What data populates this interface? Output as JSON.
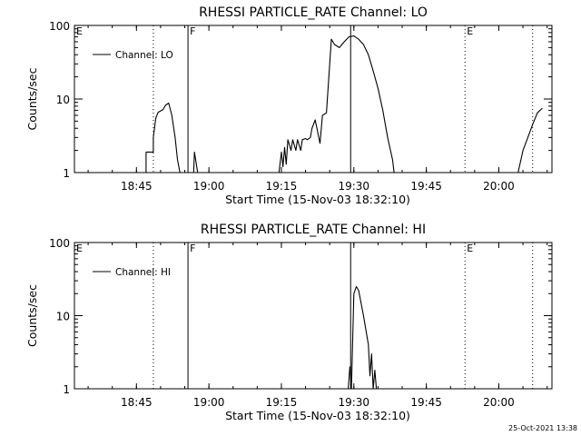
{
  "footer": {
    "timestamp": "25-Oct-2021 13:38"
  },
  "colors": {
    "foreground": "#000000",
    "background": "#ffffff"
  },
  "chart_data": [
    {
      "type": "line",
      "title": "RHESSI PARTICLE_RATE Channel: LO",
      "xlabel": "Start Time (15-Nov-03 18:32:10)",
      "ylabel": "Counts/sec",
      "y_scale": "log",
      "ylim": [
        1,
        100
      ],
      "xlim": [
        "18:32:10",
        "20:11:00"
      ],
      "x_ticks": [
        "18:45",
        "19:00",
        "19:15",
        "19:30",
        "19:45",
        "20:00"
      ],
      "y_ticks": [
        "1",
        "10",
        "100"
      ],
      "legend": {
        "position": "top-left",
        "entries": [
          "Channel: LO"
        ]
      },
      "series": [
        {
          "name": "Channel: LO",
          "x": [
            "18:47:00",
            "18:47:00",
            "18:48:30",
            "18:48:30",
            "18:49:00",
            "18:49:30",
            "18:50:30",
            "18:51:00",
            "18:51:40",
            "18:52:20",
            "18:53:00",
            "18:53:30",
            "18:54:00",
            "18:56:50",
            "18:57:00",
            "18:57:20",
            "18:57:40",
            "19:14:30",
            "19:15:00",
            "19:15:20",
            "19:15:40",
            "19:16:00",
            "19:16:20",
            "19:17:00",
            "19:17:20",
            "19:18:00",
            "19:18:20",
            "19:19:00",
            "19:19:20",
            "19:20:00",
            "19:20:20",
            "19:21:00",
            "19:21:20",
            "19:22:00",
            "19:23:00",
            "19:23:30",
            "19:24:20",
            "19:25:20",
            "19:26:00",
            "19:27:00",
            "19:28:00",
            "19:29:00",
            "19:30:00",
            "19:31:00",
            "19:32:00",
            "19:33:00",
            "19:34:00",
            "19:35:00",
            "19:36:00",
            "19:37:00",
            "19:38:00",
            "19:38:20",
            "20:04:00",
            "20:05:00",
            "20:06:00",
            "20:07:00",
            "20:08:00",
            "20:09:00"
          ],
          "values": [
            1,
            1.9,
            1.9,
            3,
            5.5,
            6.6,
            7.2,
            8.2,
            8.8,
            6,
            3,
            1.5,
            1,
            1,
            1.9,
            1.4,
            1,
            1,
            1.9,
            1.2,
            2.2,
            1.3,
            2.8,
            2,
            2.8,
            2,
            2.8,
            2,
            2.8,
            2.9,
            2.8,
            3,
            4,
            5.2,
            2.5,
            6,
            6.5,
            65,
            55,
            50,
            60,
            70,
            72,
            65,
            55,
            40,
            24,
            14,
            7,
            3,
            1.5,
            1,
            1,
            2,
            3,
            4.5,
            6.5,
            7.5
          ]
        }
      ],
      "annotations": [
        {
          "label": "E",
          "x": "18:32:10",
          "style": "dotted"
        },
        {
          "label": "",
          "x": "18:48:30",
          "style": "dotted"
        },
        {
          "label": "F",
          "x": "18:55:40",
          "style": "solid"
        },
        {
          "label": "",
          "x": "19:29:20",
          "style": "solid"
        },
        {
          "label": "E",
          "x": "19:53:00",
          "style": "dotted"
        },
        {
          "label": "",
          "x": "20:07:00",
          "style": "dotted"
        }
      ]
    },
    {
      "type": "line",
      "title": "RHESSI PARTICLE_RATE Channel: HI",
      "xlabel": "Start Time (15-Nov-03 18:32:10)",
      "ylabel": "Counts/sec",
      "y_scale": "log",
      "ylim": [
        1,
        100
      ],
      "xlim": [
        "18:32:10",
        "20:11:00"
      ],
      "x_ticks": [
        "18:45",
        "19:00",
        "19:15",
        "19:30",
        "19:45",
        "20:00"
      ],
      "y_ticks": [
        "1",
        "10",
        "100"
      ],
      "legend": {
        "position": "top-left",
        "entries": [
          "Channel: HI"
        ]
      },
      "series": [
        {
          "name": "Channel: HI",
          "x": [
            "19:28:30",
            "19:28:50",
            "19:29:10",
            "19:29:30",
            "19:30:00",
            "19:30:30",
            "19:31:00",
            "19:32:00",
            "19:33:00",
            "19:33:20",
            "19:33:40",
            "19:34:00",
            "19:34:20",
            "19:34:40",
            "19:35:00"
          ],
          "values": [
            1,
            1,
            2,
            1,
            20,
            25,
            22,
            10,
            4,
            1.5,
            3,
            1,
            1.8,
            1,
            1
          ]
        }
      ],
      "annotations": [
        {
          "label": "E",
          "x": "18:32:10",
          "style": "dotted"
        },
        {
          "label": "",
          "x": "18:48:30",
          "style": "dotted"
        },
        {
          "label": "F",
          "x": "18:55:40",
          "style": "solid"
        },
        {
          "label": "",
          "x": "19:29:20",
          "style": "solid"
        },
        {
          "label": "E",
          "x": "19:53:00",
          "style": "dotted"
        },
        {
          "label": "",
          "x": "20:07:00",
          "style": "dotted"
        }
      ]
    }
  ]
}
